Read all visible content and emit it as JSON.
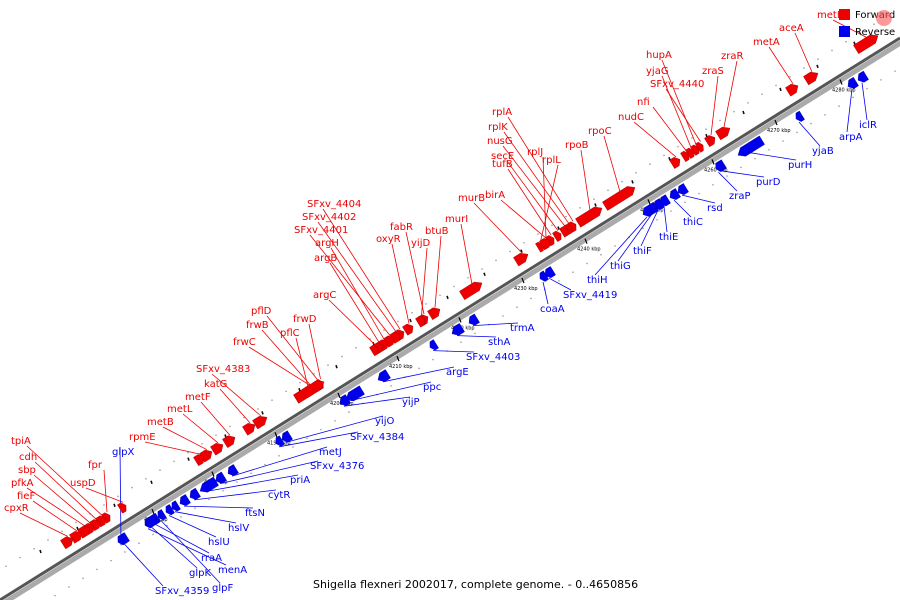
{
  "genome": {
    "caption": "Shigella flexneri 2002017, complete genome. - 0..4650856",
    "tick_labels": [
      "4170 kbp",
      "4180 kbp",
      "4190 kbp",
      "4200 kbp",
      "4210 kbp",
      "4220 kbp",
      "4230 kbp",
      "4240 kbp",
      "4250 kbp",
      "4260 kbp",
      "4270 kbp",
      "4280 kbp"
    ]
  },
  "legend": {
    "forward_label": "Forward",
    "reverse_label": "Reverse",
    "forward_color": "#ee0000",
    "reverse_color": "#0000ee"
  },
  "genes": {
    "forward": [
      "metH",
      "aceA",
      "metA",
      "zraR",
      "zraS",
      "hupA",
      "yjaG",
      "SFxv_4440",
      "nfi",
      "nudC",
      "rpoC",
      "rpoB",
      "rplA",
      "rplK",
      "nusG",
      "secE",
      "tufB",
      "rplJ",
      "rplL",
      "birA",
      "murB",
      "murI",
      "btuB",
      "fabR",
      "yijD",
      "oxyR",
      "SFxv_4404",
      "SFxv_4402",
      "SFxv_4401",
      "argH",
      "argB",
      "argC",
      "frwD",
      "pflD",
      "frwB",
      "pflC",
      "frwC",
      "SFxv_4383",
      "katG",
      "metF",
      "metL",
      "metB",
      "rpmE",
      "uspD",
      "fpr",
      "tpiA",
      "cdh",
      "sbp",
      "pfkA",
      "fieF",
      "cpxR"
    ],
    "reverse": [
      "iclR",
      "arpA",
      "yjaB",
      "purH",
      "purD",
      "zraP",
      "rsd",
      "thiC",
      "thiE",
      "thiF",
      "thiG",
      "thiH",
      "SFxv_4419",
      "coaA",
      "trmA",
      "sthA",
      "SFxv_4403",
      "argE",
      "ppc",
      "yijP",
      "yijO",
      "SFxv_4384",
      "metJ",
      "SFxv_4376",
      "priA",
      "cytR",
      "ftsN",
      "hslV",
      "hslU",
      "rraA",
      "menA",
      "glpK",
      "glpF",
      "SFxv_4359",
      "glpX"
    ]
  }
}
